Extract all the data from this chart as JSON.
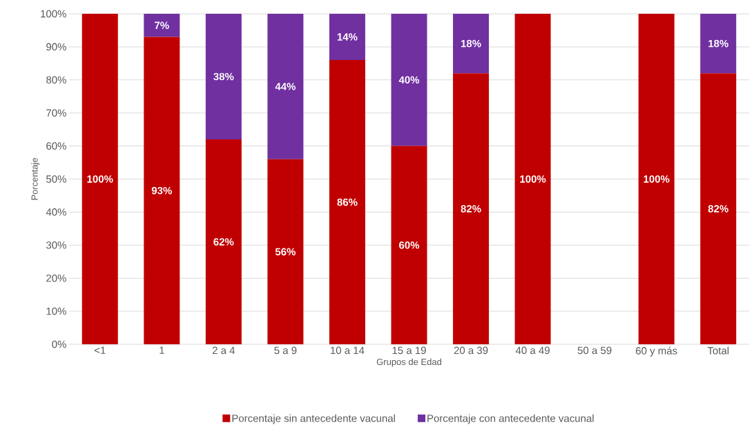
{
  "chart_data": {
    "type": "bar",
    "stacked": true,
    "xlabel": "Grupos de Edad",
    "ylabel": "Porcentaje",
    "categories": [
      "<1",
      "1",
      "2 a 4",
      "5 a 9",
      "10 a 14",
      "15 a 19",
      "20 a 39",
      "40 a 49",
      "50 a 59",
      "60 y más",
      "Total"
    ],
    "series": [
      {
        "name": "Porcentaje sin antecedente vacunal",
        "color": "#c00000",
        "values": [
          100,
          93,
          62,
          56,
          86,
          60,
          82,
          100,
          0,
          100,
          82
        ],
        "value_labels": [
          "100%",
          "93%",
          "62%",
          "56%",
          "86%",
          "60%",
          "82%",
          "100%",
          null,
          "100%",
          "82%"
        ]
      },
      {
        "name": "Porcentaje con antecedente vacunal",
        "color": "#7030a0",
        "values": [
          0,
          7,
          38,
          44,
          14,
          40,
          18,
          0,
          0,
          0,
          18
        ],
        "value_labels": [
          null,
          "7%",
          "38%",
          "44%",
          "14%",
          "40%",
          "18%",
          null,
          null,
          null,
          "18%"
        ]
      }
    ],
    "ylim": [
      0,
      100
    ],
    "yticks": [
      {
        "value": 0,
        "label": "0%"
      },
      {
        "value": 10,
        "label": "10%"
      },
      {
        "value": 20,
        "label": "20%"
      },
      {
        "value": 30,
        "label": "30%"
      },
      {
        "value": 40,
        "label": "40%"
      },
      {
        "value": 50,
        "label": "50%"
      },
      {
        "value": 60,
        "label": "60%"
      },
      {
        "value": 70,
        "label": "70%"
      },
      {
        "value": 80,
        "label": "80%"
      },
      {
        "value": 90,
        "label": "90%"
      },
      {
        "value": 100,
        "label": "100%"
      }
    ],
    "grid": "y",
    "legend": "bottom"
  }
}
